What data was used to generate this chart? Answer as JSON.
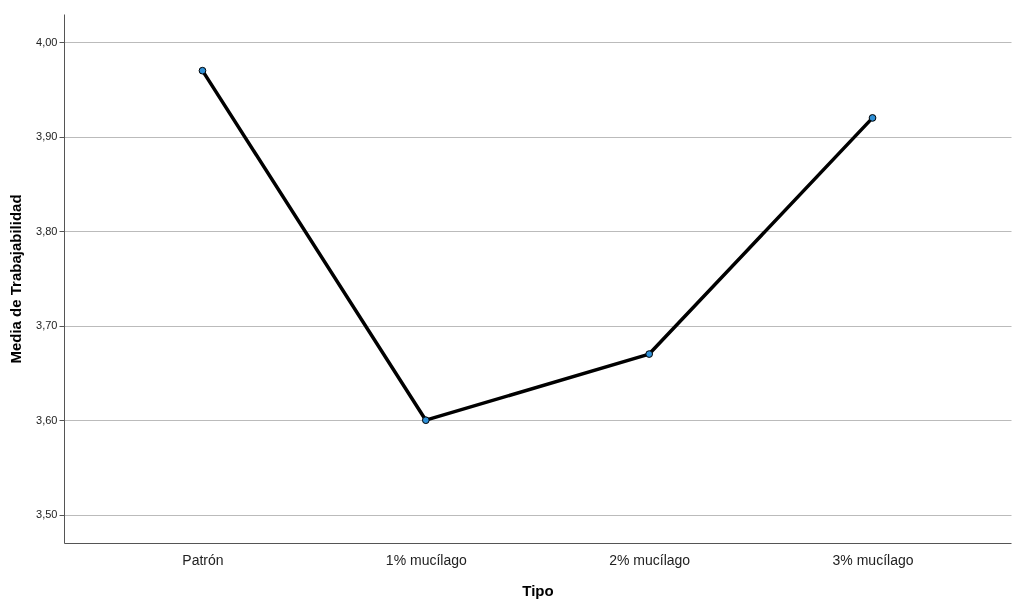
{
  "chart_data": {
    "type": "line",
    "xlabel": "Tipo",
    "ylabel": "Media de Trabajabilidad",
    "categories": [
      "Patrón",
      "1% mucílago",
      "2% mucílago",
      "3% mucílago"
    ],
    "series": [
      {
        "color": "#000000",
        "values": [
          3.97,
          3.6,
          3.67,
          3.92
        ]
      }
    ],
    "ylim": [
      3.47,
      4.03
    ],
    "yticks": [
      {
        "value": 3.5,
        "label": "3,50"
      },
      {
        "value": 3.6,
        "label": "3,60"
      },
      {
        "value": 3.7,
        "label": "3,70"
      },
      {
        "value": 3.8,
        "label": "3,80"
      },
      {
        "value": 3.9,
        "label": "3,90"
      },
      {
        "value": 4.0,
        "label": "4,00"
      }
    ],
    "grid": "y",
    "marker": "circle",
    "line_style": "solid"
  }
}
